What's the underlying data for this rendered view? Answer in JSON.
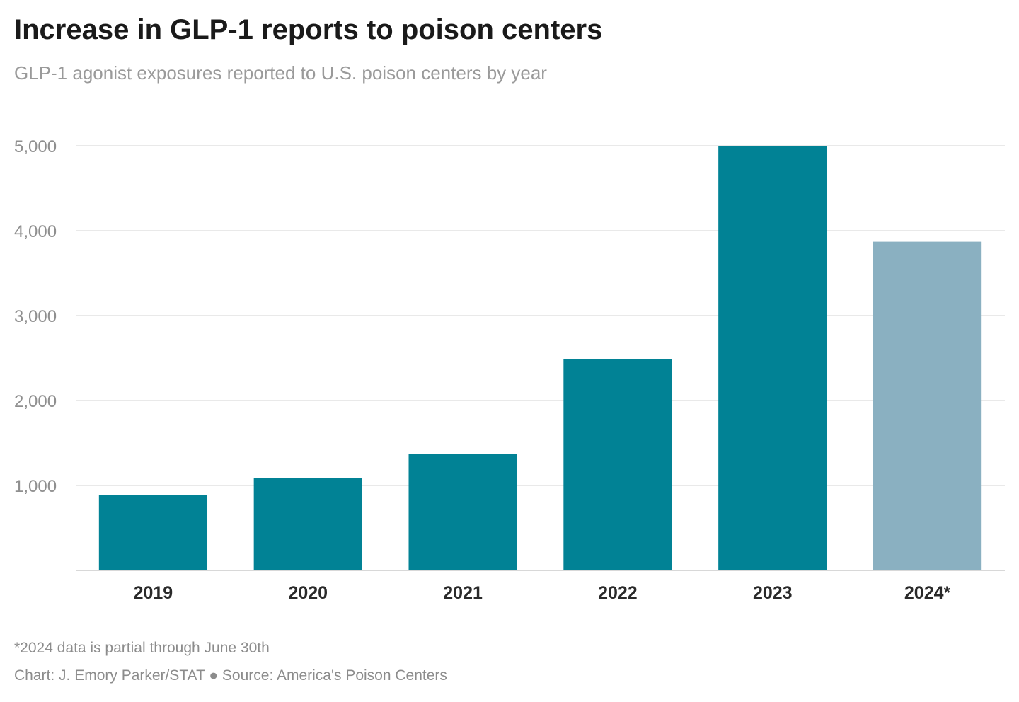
{
  "header": {
    "title": "Increase in GLP-1 reports to poison centers",
    "subtitle": "GLP-1 agonist exposures reported to U.S. poison centers by year"
  },
  "footer": {
    "note": "*2024 data is partial through June 30th",
    "credit": "Chart: J. Emory Parker/STAT ● Source: America's Poison Centers"
  },
  "chart_data": {
    "type": "bar",
    "title": "Increase in GLP-1 reports to poison centers",
    "subtitle": "GLP-1 agonist exposures reported to U.S. poison centers by year",
    "categories": [
      "2019",
      "2020",
      "2021",
      "2022",
      "2023",
      "2024*"
    ],
    "values": [
      890,
      1090,
      1370,
      2490,
      5000,
      3870
    ],
    "partial": [
      false,
      false,
      false,
      false,
      false,
      true
    ],
    "xlabel": "",
    "ylabel": "",
    "ylim": [
      0,
      5000
    ],
    "yticks": [
      1000,
      2000,
      3000,
      4000,
      5000
    ],
    "ytick_labels": [
      "1,000",
      "2,000",
      "3,000",
      "4,000",
      "5,000"
    ],
    "grid": true,
    "legend": "none",
    "colors": {
      "bar": "#018295",
      "partial_bar": "#8ab0c1",
      "grid": "#e2e2e2",
      "axis": "#d8d8d8"
    }
  }
}
